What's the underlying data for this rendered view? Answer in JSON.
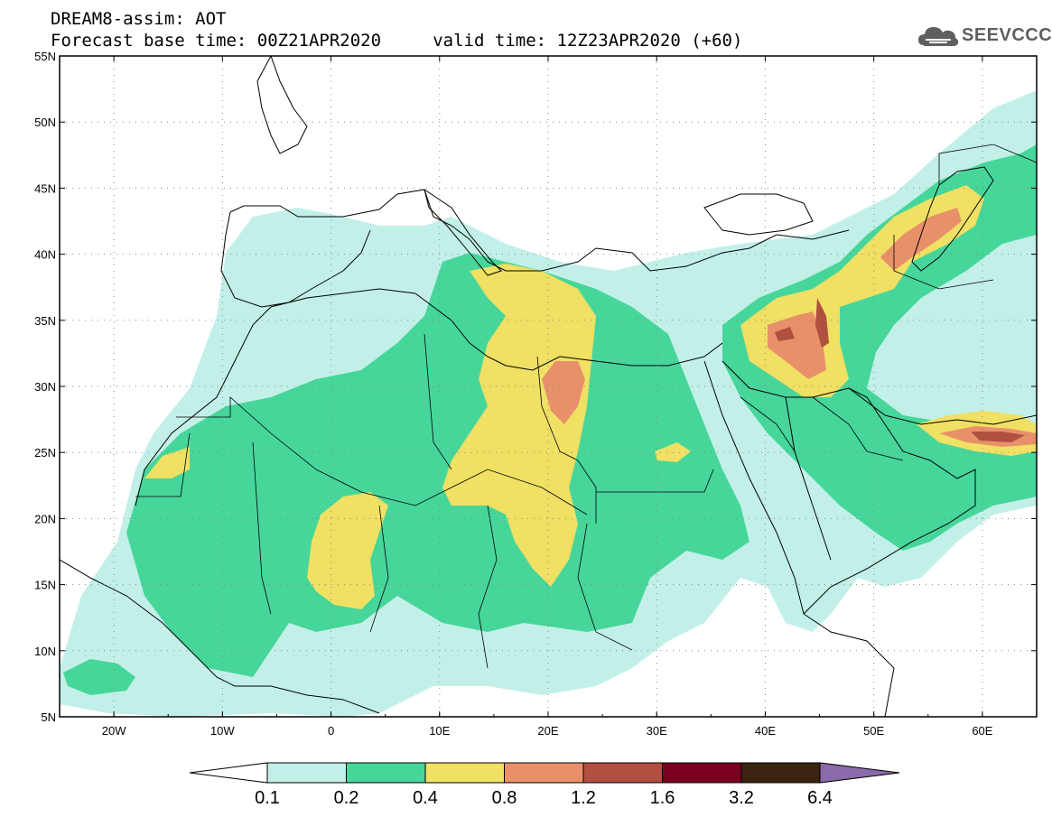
{
  "header": {
    "line1": "DREAM8-assim: AOT",
    "line2": "Forecast base time: 00Z21APR2020     valid time: 12Z23APR2020 (+60)",
    "logo_text": "SEEVCCC",
    "logo_icon": "cloud-icon"
  },
  "map": {
    "lon_range": [
      -25,
      65
    ],
    "lat_range": [
      5,
      55
    ],
    "lon_ticks": [
      {
        "value": -20,
        "label": "20W"
      },
      {
        "value": -10,
        "label": "10W"
      },
      {
        "value": 0,
        "label": "0"
      },
      {
        "value": 10,
        "label": "10E"
      },
      {
        "value": 20,
        "label": "20E"
      },
      {
        "value": 30,
        "label": "30E"
      },
      {
        "value": 40,
        "label": "40E"
      },
      {
        "value": 50,
        "label": "50E"
      },
      {
        "value": 60,
        "label": "60E"
      }
    ],
    "lat_ticks": [
      {
        "value": 55,
        "label": "55N"
      },
      {
        "value": 50,
        "label": "50N"
      },
      {
        "value": 45,
        "label": "45N"
      },
      {
        "value": 40,
        "label": "40N"
      },
      {
        "value": 35,
        "label": "35N"
      },
      {
        "value": 30,
        "label": "30N"
      },
      {
        "value": 25,
        "label": "25N"
      },
      {
        "value": 20,
        "label": "20N"
      },
      {
        "value": 15,
        "label": "15N"
      },
      {
        "value": 10,
        "label": "10N"
      },
      {
        "value": 5,
        "label": "5N"
      }
    ],
    "colors": {
      "c01": "#c2f0e8",
      "c02": "#46d69a",
      "c04": "#f0e064",
      "c08": "#e8906a",
      "c12": "#b05040",
      "c16": "#7a0020",
      "c32": "#3a2410",
      "c64": "#8a6aa8"
    }
  },
  "colorbar": {
    "labels": [
      "0.1",
      "0.2",
      "0.4",
      "0.8",
      "1.2",
      "1.6",
      "3.2",
      "6.4"
    ]
  }
}
